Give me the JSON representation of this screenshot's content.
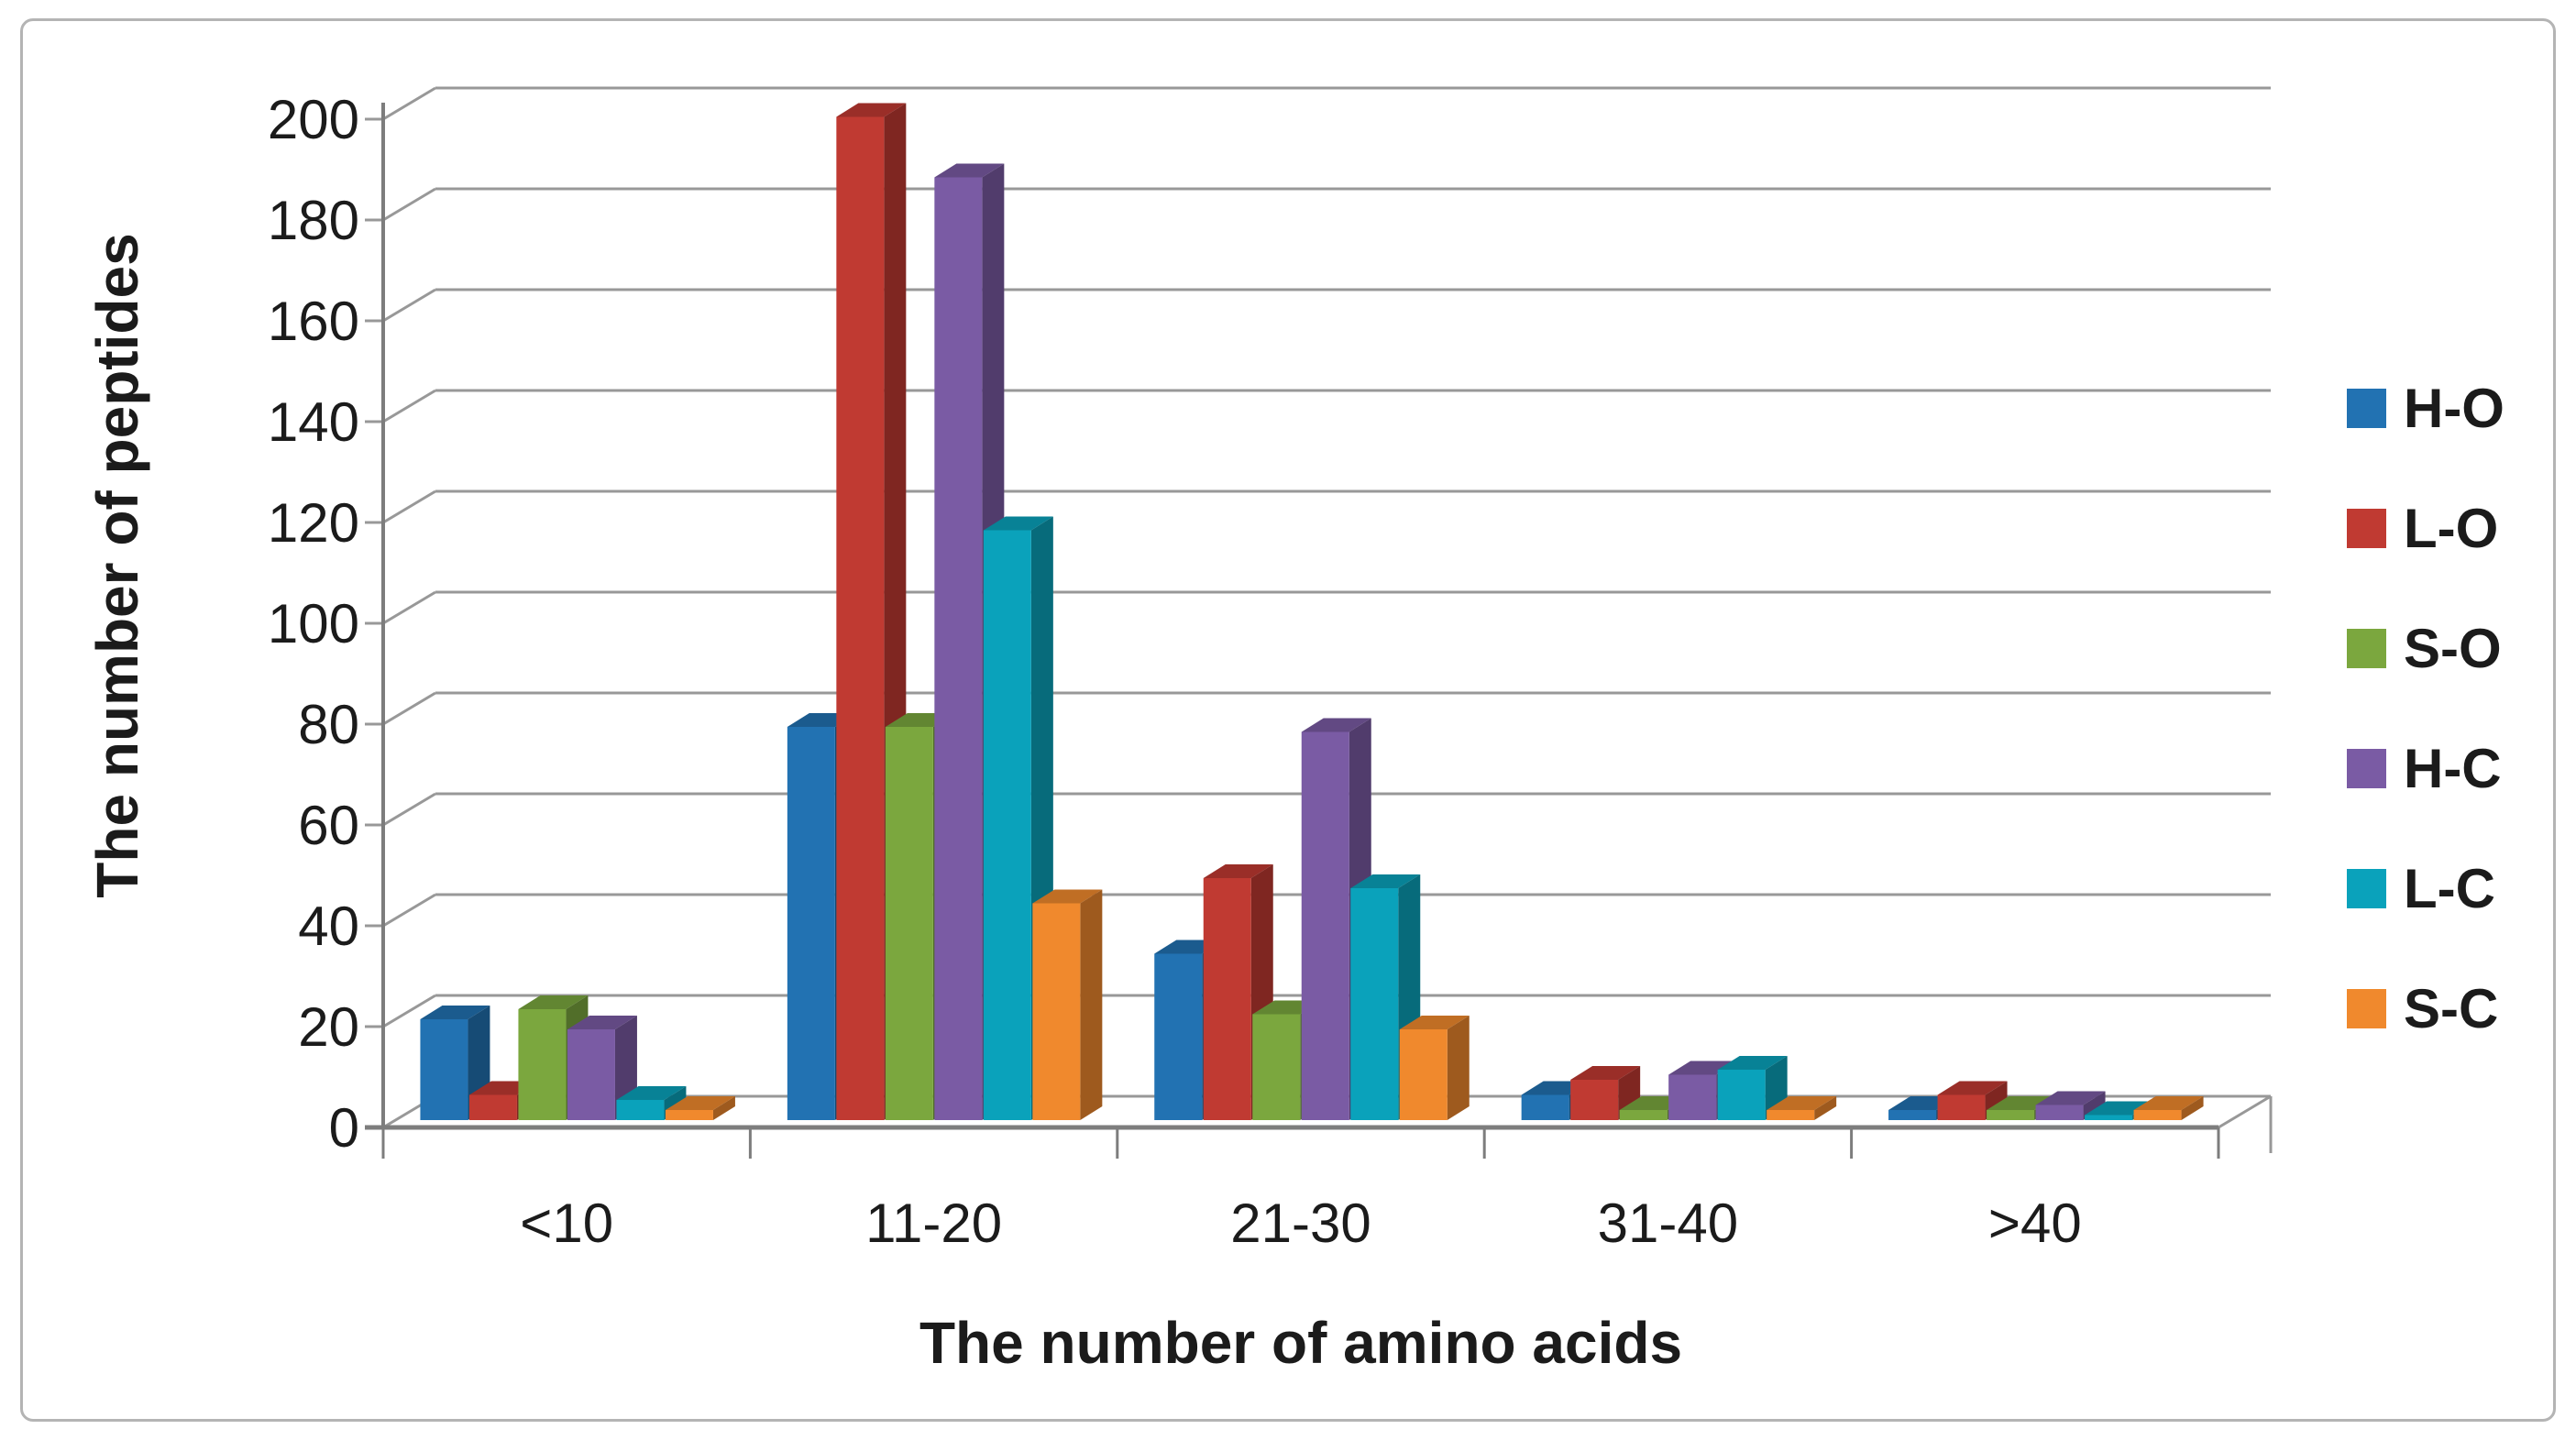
{
  "figure": {
    "background": "#ffffff",
    "border_color": "#b4b4b4",
    "gridline_color": "#989898",
    "axis_color": "#7d7d7d",
    "text_color": "#1b1b1b"
  },
  "chart_data": {
    "type": "bar",
    "subtype": "3d-clustered-column",
    "title": "",
    "xlabel": "The number of amino acids",
    "ylabel": "The number of peptides",
    "categories": [
      "<10",
      "11-20",
      "21-30",
      "31-40",
      ">40"
    ],
    "series": [
      {
        "name": "H-O",
        "color": "#2272b2",
        "values": [
          20,
          78,
          33,
          5,
          2
        ]
      },
      {
        "name": "L-O",
        "color": "#c03a32",
        "values": [
          5,
          199,
          48,
          8,
          5
        ]
      },
      {
        "name": "S-O",
        "color": "#7ba73e",
        "values": [
          22,
          78,
          21,
          2,
          2
        ]
      },
      {
        "name": "H-C",
        "color": "#7a5ba4",
        "values": [
          18,
          187,
          77,
          9,
          3
        ]
      },
      {
        "name": "L-C",
        "color": "#0aa2bb",
        "values": [
          4,
          117,
          46,
          10,
          1
        ]
      },
      {
        "name": "S-C",
        "color": "#f0892d",
        "values": [
          2,
          43,
          18,
          2,
          2
        ]
      }
    ],
    "y_axis": {
      "min": 0,
      "max": 200,
      "step": 20,
      "tick_labels": [
        "0",
        "20",
        "40",
        "60",
        "80",
        "100",
        "120",
        "140",
        "160",
        "180",
        "200"
      ]
    },
    "legend_position": "right",
    "grid": true
  }
}
